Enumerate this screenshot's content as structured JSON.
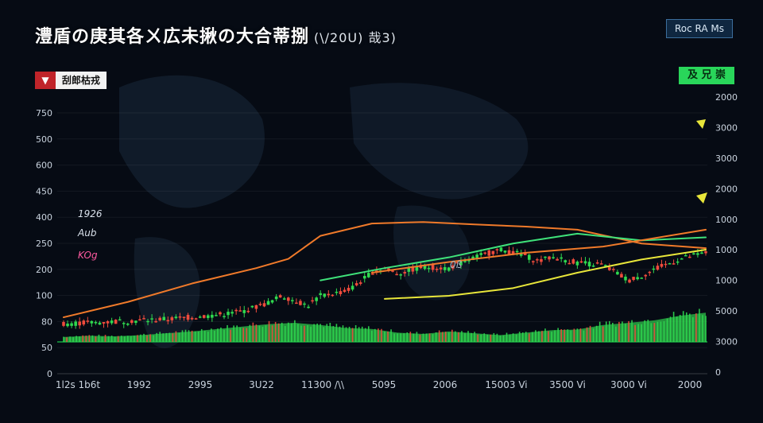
{
  "header": {
    "title": "澧盾の庚其各ㄨ広未揪の大合蒂捌",
    "title_suffix": "(\\/20U) 哉3)",
    "top_badge": "Roc RA Ms",
    "left_badge": "刮郎枯戎",
    "right_badge": "及 兄 崇"
  },
  "annotations": [
    {
      "text": "1926",
      "color": "#d8e0ea"
    },
    {
      "text": "Aub",
      "color": "#d8e0ea"
    },
    {
      "text": "KOg",
      "color": "#ff5aa0"
    },
    {
      "text": "0ß",
      "color": "#aab4c0"
    }
  ],
  "colors": {
    "background": "#060b14",
    "up_candle": "#2fd94f",
    "down_candle": "#ef4b3c",
    "volume_fill": "#2ec24a",
    "orange_curve": "#f07a2a",
    "yellow_curve": "#e8e63a",
    "green_curve": "#3fe27a",
    "teal_curve": "#45d0b0",
    "baseline": "#19c24a"
  },
  "chart_data": {
    "type": "line",
    "title": "澧盾の庚其各ㄨ広未揪の大合蒂捌",
    "xlabel": "",
    "ylabel": "",
    "x_ticks": [
      "1l2s 1b6t",
      "1992",
      "2995",
      "3U22",
      "11300 /\\\\",
      "5095",
      "2006",
      "15003 Vi",
      "3500 Vi",
      "3000 Vi",
      "2000"
    ],
    "left_y_ticks": [
      "750",
      "500",
      "600",
      "450",
      "400",
      "250",
      "200",
      "100",
      "80",
      "50",
      "0"
    ],
    "right_y_ticks": [
      "2000",
      "3000",
      "3000",
      "2000",
      "1000",
      "1000",
      "1000",
      "5000",
      "3000",
      "0"
    ],
    "left_ylim": [
      0,
      750
    ],
    "price_points": [
      [
        0,
        60
      ],
      [
        4,
        62
      ],
      [
        8,
        66
      ],
      [
        12,
        70
      ],
      [
        16,
        74
      ],
      [
        20,
        80
      ],
      [
        24,
        88
      ],
      [
        28,
        100
      ],
      [
        32,
        128
      ],
      [
        34,
        150
      ],
      [
        36,
        135
      ],
      [
        38,
        118
      ],
      [
        40,
        150
      ],
      [
        44,
        165
      ],
      [
        46,
        190
      ],
      [
        48,
        228
      ],
      [
        50,
        240
      ],
      [
        52,
        222
      ],
      [
        56,
        245
      ],
      [
        60,
        240
      ],
      [
        64,
        275
      ],
      [
        68,
        300
      ],
      [
        70,
        292
      ],
      [
        72,
        280
      ],
      [
        74,
        262
      ],
      [
        76,
        276
      ],
      [
        80,
        258
      ],
      [
        84,
        250
      ],
      [
        88,
        200
      ],
      [
        90,
        215
      ],
      [
        92,
        235
      ],
      [
        96,
        270
      ],
      [
        100,
        290
      ]
    ],
    "volume_points": [
      [
        0,
        16
      ],
      [
        4,
        20
      ],
      [
        8,
        18
      ],
      [
        12,
        22
      ],
      [
        16,
        28
      ],
      [
        20,
        34
      ],
      [
        24,
        42
      ],
      [
        28,
        50
      ],
      [
        32,
        58
      ],
      [
        36,
        62
      ],
      [
        40,
        55
      ],
      [
        44,
        45
      ],
      [
        48,
        42
      ],
      [
        52,
        30
      ],
      [
        56,
        26
      ],
      [
        60,
        34
      ],
      [
        64,
        28
      ],
      [
        68,
        22
      ],
      [
        72,
        30
      ],
      [
        76,
        38
      ],
      [
        80,
        40
      ],
      [
        84,
        55
      ],
      [
        88,
        62
      ],
      [
        92,
        70
      ],
      [
        96,
        85
      ],
      [
        100,
        95
      ]
    ],
    "series": [
      {
        "name": "",
        "color": "#f07a2a",
        "points": [
          [
            0,
            80
          ],
          [
            10,
            130
          ],
          [
            20,
            190
          ],
          [
            30,
            240
          ],
          [
            35,
            270
          ],
          [
            40,
            345
          ],
          [
            48,
            385
          ],
          [
            56,
            390
          ],
          [
            64,
            382
          ],
          [
            72,
            375
          ],
          [
            80,
            365
          ],
          [
            90,
            320
          ],
          [
            100,
            305
          ]
        ]
      },
      {
        "name": "",
        "color": "#e8e63a",
        "points": [
          [
            50,
            140
          ],
          [
            60,
            150
          ],
          [
            70,
            175
          ],
          [
            80,
            225
          ],
          [
            90,
            268
          ],
          [
            100,
            300
          ]
        ]
      },
      {
        "name": "",
        "color": "#3fe27a",
        "points": [
          [
            40,
            200
          ],
          [
            50,
            240
          ],
          [
            60,
            275
          ],
          [
            70,
            320
          ],
          [
            80,
            352
          ],
          [
            90,
            330
          ],
          [
            100,
            340
          ]
        ]
      },
      {
        "name": "",
        "color": "#f07a2a",
        "points": [
          [
            48,
            225
          ],
          [
            60,
            260
          ],
          [
            72,
            290
          ],
          [
            84,
            310
          ],
          [
            100,
            365
          ]
        ]
      }
    ]
  }
}
